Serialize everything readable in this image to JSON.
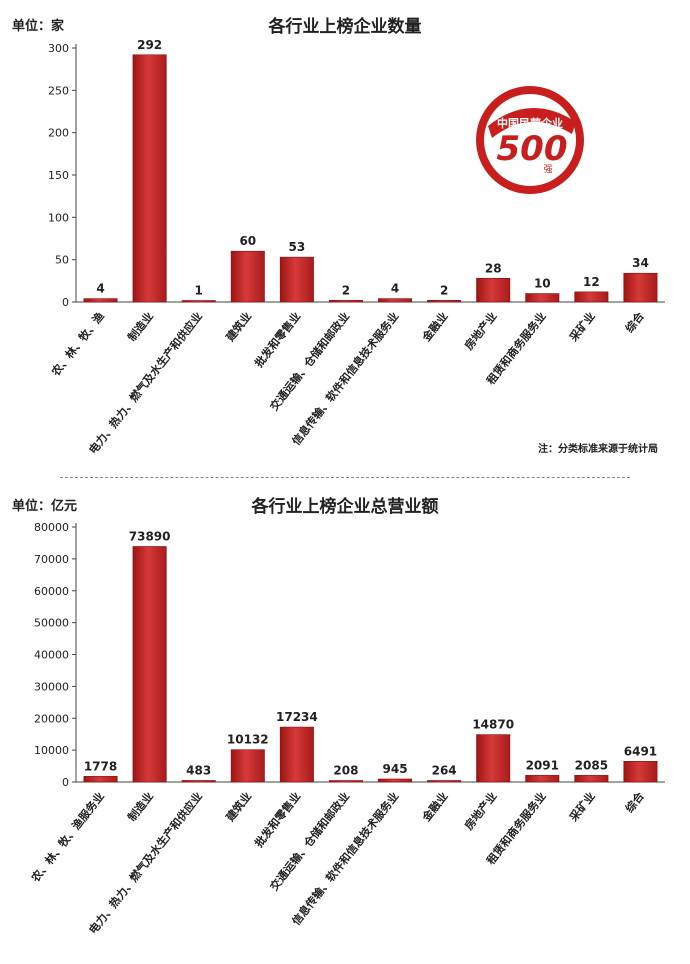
{
  "logo": {
    "brand": "中国民营企业",
    "number": "500",
    "suffix": "强"
  },
  "chart_data": [
    {
      "type": "bar",
      "title": "各行业上榜企业数量",
      "unit_label": "单位：家",
      "note": "注：分类标准来源于统计局",
      "ylim": [
        0,
        300
      ],
      "yticks": [
        0,
        50,
        100,
        150,
        200,
        250,
        300
      ],
      "categories": [
        "农、林、牧、渔",
        "制造业",
        "电力、热力、燃气及水生产和供应业",
        "建筑业",
        "批发和零售业",
        "交通运输、仓储和邮政业",
        "信息传输、软件和信息技术服务业",
        "金融业",
        "房地产业",
        "租赁和商务服务业",
        "采矿业",
        "综合"
      ],
      "values": [
        4,
        292,
        1,
        60,
        53,
        2,
        4,
        2,
        28,
        10,
        12,
        34
      ],
      "grid": false,
      "color": "#d63a3a"
    },
    {
      "type": "bar",
      "title": "各行业上榜企业总营业额",
      "unit_label": "单位：亿元",
      "ylim": [
        0,
        80000
      ],
      "yticks": [
        0,
        10000,
        20000,
        30000,
        40000,
        50000,
        60000,
        70000,
        80000
      ],
      "categories": [
        "农、林、牧、渔服务业",
        "制造业",
        "电力、热力、燃气及水生产和供应业",
        "建筑业",
        "批发和零售业",
        "交通运输、仓储和邮政业",
        "信息传输、软件和信息技术服务业",
        "金融业",
        "房地产业",
        "租赁和商务服务业",
        "采矿业",
        "综合"
      ],
      "values": [
        1778,
        73890,
        483,
        10132,
        17234,
        208,
        945,
        264,
        14870,
        2091,
        2085,
        6491
      ],
      "grid": false,
      "color": "#d63a3a"
    }
  ]
}
